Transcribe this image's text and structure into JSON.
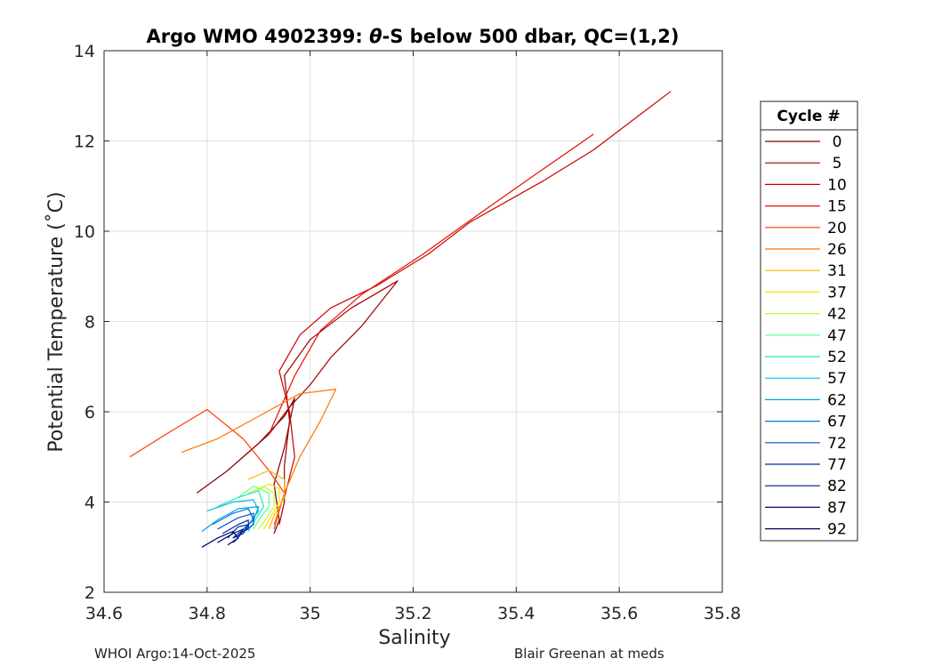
{
  "chart_data": {
    "type": "line",
    "title_prefix": "Argo WMO 4902399: ",
    "title_symbol": "θ",
    "title_suffix": "-S below 500 dbar,  QC=(1,2)",
    "xlabel": "Salinity",
    "ylabel": "Potential Temperature (˚C)",
    "xlim": [
      34.6,
      35.8
    ],
    "ylim": [
      2,
      14
    ],
    "xticks": [
      34.6,
      34.8,
      35,
      35.2,
      35.4,
      35.6,
      35.8
    ],
    "xtick_labels": [
      "34.6",
      "34.8",
      "35",
      "35.2",
      "35.4",
      "35.6",
      "35.8"
    ],
    "yticks": [
      2,
      4,
      6,
      8,
      10,
      12,
      14
    ],
    "ytick_labels": [
      "2",
      "4",
      "6",
      "8",
      "10",
      "12",
      "14"
    ],
    "grid": true,
    "legend_title": "Cycle #",
    "legend_placement": "right",
    "series": [
      {
        "name": "0",
        "color": "#800000",
        "points": [
          [
            34.78,
            4.2
          ],
          [
            34.84,
            4.7
          ],
          [
            34.9,
            5.3
          ],
          [
            34.95,
            5.9
          ],
          [
            34.97,
            6.3
          ],
          [
            34.95,
            5.2
          ],
          [
            34.93,
            4.4
          ],
          [
            34.94,
            3.6
          ],
          [
            34.93,
            3.3
          ]
        ]
      },
      {
        "name": "5",
        "color": "#9e0000",
        "points": [
          [
            34.86,
            4.9
          ],
          [
            34.92,
            5.5
          ],
          [
            34.96,
            6.1
          ],
          [
            35.0,
            6.6
          ],
          [
            35.04,
            7.2
          ],
          [
            35.1,
            7.9
          ],
          [
            35.17,
            8.9
          ],
          [
            35.08,
            8.3
          ],
          [
            35.0,
            7.6
          ],
          [
            34.95,
            6.8
          ],
          [
            34.96,
            5.8
          ],
          [
            34.95,
            4.8
          ],
          [
            34.95,
            4.0
          ],
          [
            34.94,
            3.5
          ]
        ]
      },
      {
        "name": "10",
        "color": "#c80000",
        "points": [
          [
            34.95,
            4.1
          ],
          [
            34.97,
            5.0
          ],
          [
            34.96,
            6.0
          ],
          [
            34.94,
            6.9
          ],
          [
            34.98,
            7.7
          ],
          [
            35.04,
            8.3
          ],
          [
            35.13,
            8.8
          ],
          [
            35.23,
            9.5
          ],
          [
            35.31,
            10.2
          ],
          [
            35.45,
            11.1
          ],
          [
            35.55,
            11.8
          ],
          [
            35.7,
            13.1
          ]
        ]
      },
      {
        "name": "15",
        "color": "#e81000",
        "points": [
          [
            34.92,
            5.5
          ],
          [
            34.97,
            6.8
          ],
          [
            35.02,
            7.8
          ],
          [
            35.1,
            8.6
          ],
          [
            35.22,
            9.5
          ],
          [
            35.33,
            10.4
          ],
          [
            35.43,
            11.2
          ],
          [
            35.55,
            12.15
          ]
        ]
      },
      {
        "name": "20",
        "color": "#ff3a00",
        "points": [
          [
            34.65,
            5.0
          ],
          [
            34.72,
            5.5
          ],
          [
            34.8,
            6.05
          ],
          [
            34.87,
            5.4
          ],
          [
            34.92,
            4.7
          ],
          [
            34.95,
            4.2
          ],
          [
            34.94,
            3.8
          ],
          [
            34.93,
            3.4
          ]
        ]
      },
      {
        "name": "26",
        "color": "#ff7500",
        "points": [
          [
            34.75,
            5.1
          ],
          [
            34.82,
            5.4
          ],
          [
            34.9,
            5.9
          ],
          [
            34.98,
            6.4
          ],
          [
            35.05,
            6.5
          ],
          [
            35.02,
            5.8
          ],
          [
            34.98,
            5.0
          ],
          [
            34.95,
            4.2
          ],
          [
            34.93,
            3.5
          ]
        ]
      },
      {
        "name": "31",
        "color": "#ffb000",
        "points": [
          [
            34.88,
            4.5
          ],
          [
            34.92,
            4.7
          ],
          [
            34.95,
            4.5
          ],
          [
            34.95,
            4.1
          ],
          [
            34.93,
            3.7
          ],
          [
            34.92,
            3.4
          ]
        ]
      },
      {
        "name": "37",
        "color": "#f7e600",
        "points": [
          [
            34.89,
            4.2
          ],
          [
            34.92,
            4.4
          ],
          [
            34.94,
            4.3
          ],
          [
            34.94,
            4.0
          ],
          [
            34.92,
            3.6
          ],
          [
            34.91,
            3.4
          ]
        ]
      },
      {
        "name": "42",
        "color": "#b9ff2e",
        "points": [
          [
            34.88,
            4.2
          ],
          [
            34.91,
            4.35
          ],
          [
            34.93,
            4.2
          ],
          [
            34.93,
            3.9
          ],
          [
            34.91,
            3.55
          ],
          [
            34.9,
            3.4
          ]
        ]
      },
      {
        "name": "47",
        "color": "#5cff8a",
        "points": [
          [
            34.86,
            4.1
          ],
          [
            34.89,
            4.35
          ],
          [
            34.92,
            4.2
          ],
          [
            34.92,
            3.9
          ],
          [
            34.9,
            3.6
          ],
          [
            34.89,
            3.4
          ]
        ]
      },
      {
        "name": "52",
        "color": "#20e8c0",
        "points": [
          [
            34.82,
            3.9
          ],
          [
            34.86,
            4.1
          ],
          [
            34.9,
            4.25
          ],
          [
            34.91,
            3.9
          ],
          [
            34.89,
            3.55
          ],
          [
            34.88,
            3.35
          ]
        ]
      },
      {
        "name": "57",
        "color": "#00c0e0",
        "points": [
          [
            34.8,
            3.8
          ],
          [
            34.85,
            4.0
          ],
          [
            34.89,
            4.05
          ],
          [
            34.9,
            3.8
          ],
          [
            34.88,
            3.5
          ],
          [
            34.87,
            3.35
          ]
        ]
      },
      {
        "name": "62",
        "color": "#00a0e8",
        "points": [
          [
            34.79,
            3.35
          ],
          [
            34.82,
            3.6
          ],
          [
            34.86,
            3.85
          ],
          [
            34.9,
            3.9
          ],
          [
            34.89,
            3.6
          ],
          [
            34.87,
            3.4
          ]
        ]
      },
      {
        "name": "67",
        "color": "#0078e0",
        "points": [
          [
            34.81,
            3.5
          ],
          [
            34.85,
            3.75
          ],
          [
            34.88,
            3.85
          ],
          [
            34.89,
            3.6
          ],
          [
            34.87,
            3.4
          ],
          [
            34.86,
            3.3
          ]
        ]
      },
      {
        "name": "72",
        "color": "#0050d0",
        "points": [
          [
            34.82,
            3.4
          ],
          [
            34.86,
            3.65
          ],
          [
            34.89,
            3.75
          ],
          [
            34.89,
            3.5
          ],
          [
            34.87,
            3.35
          ],
          [
            34.86,
            3.25
          ]
        ]
      },
      {
        "name": "77",
        "color": "#0028b0",
        "points": [
          [
            34.83,
            3.3
          ],
          [
            34.86,
            3.5
          ],
          [
            34.88,
            3.6
          ],
          [
            34.88,
            3.4
          ],
          [
            34.86,
            3.3
          ],
          [
            34.85,
            3.2
          ]
        ]
      },
      {
        "name": "82",
        "color": "#001890",
        "points": [
          [
            34.84,
            3.2
          ],
          [
            34.86,
            3.45
          ],
          [
            34.88,
            3.5
          ],
          [
            34.87,
            3.3
          ],
          [
            34.85,
            3.2
          ]
        ]
      },
      {
        "name": "87",
        "color": "#000c78",
        "points": [
          [
            34.82,
            3.1
          ],
          [
            34.85,
            3.3
          ],
          [
            34.87,
            3.4
          ],
          [
            34.86,
            3.2
          ],
          [
            34.85,
            3.1
          ]
        ]
      },
      {
        "name": "92",
        "color": "#000060",
        "points": [
          [
            34.79,
            3.0
          ],
          [
            34.82,
            3.2
          ],
          [
            34.85,
            3.35
          ],
          [
            34.86,
            3.2
          ],
          [
            34.84,
            3.05
          ]
        ]
      }
    ]
  },
  "footer": {
    "left": "WHOI Argo:14-Oct-2025",
    "right": "Blair Greenan at meds"
  }
}
